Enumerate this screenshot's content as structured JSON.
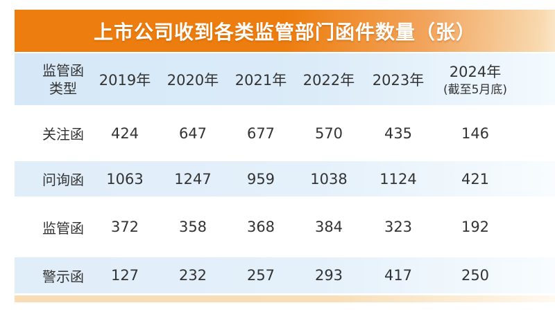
{
  "title": "上市公司收到各类监管部门函件数量（张）",
  "header": {
    "type_label_line1": "监管函",
    "type_label_line2": "类型",
    "year_columns": [
      "2019年",
      "2020年",
      "2021年",
      "2022年",
      "2023年"
    ],
    "last_column_line1": "2024年",
    "last_column_line2": "(截至5月底)"
  },
  "chart_data": {
    "type": "table",
    "title": "上市公司收到各类监管部门函件数量（张）",
    "categories": [
      "2019年",
      "2020年",
      "2021年",
      "2022年",
      "2023年",
      "2024年(截至5月底)"
    ],
    "row_header_label": "监管函类型",
    "series": [
      {
        "name": "关注函",
        "values": [
          424,
          647,
          677,
          570,
          435,
          146
        ]
      },
      {
        "name": "问询函",
        "values": [
          1063,
          1247,
          959,
          1038,
          1124,
          421
        ]
      },
      {
        "name": "监管函",
        "values": [
          372,
          358,
          368,
          384,
          323,
          192
        ]
      },
      {
        "name": "警示函",
        "values": [
          127,
          232,
          257,
          293,
          417,
          250
        ]
      }
    ],
    "layout": {
      "grid": false,
      "legend": "none",
      "zebra_striping": true
    }
  },
  "colors": {
    "accent_orange": "#ED7D0E",
    "orange_fade": "#F8D9AF",
    "header_blue": "#D8E9F8",
    "row_blue": "#E3EFFA",
    "bottom_strip_orange": "#F7DCB4",
    "title_text": "#FFFFFF",
    "body_text": "#333333"
  }
}
